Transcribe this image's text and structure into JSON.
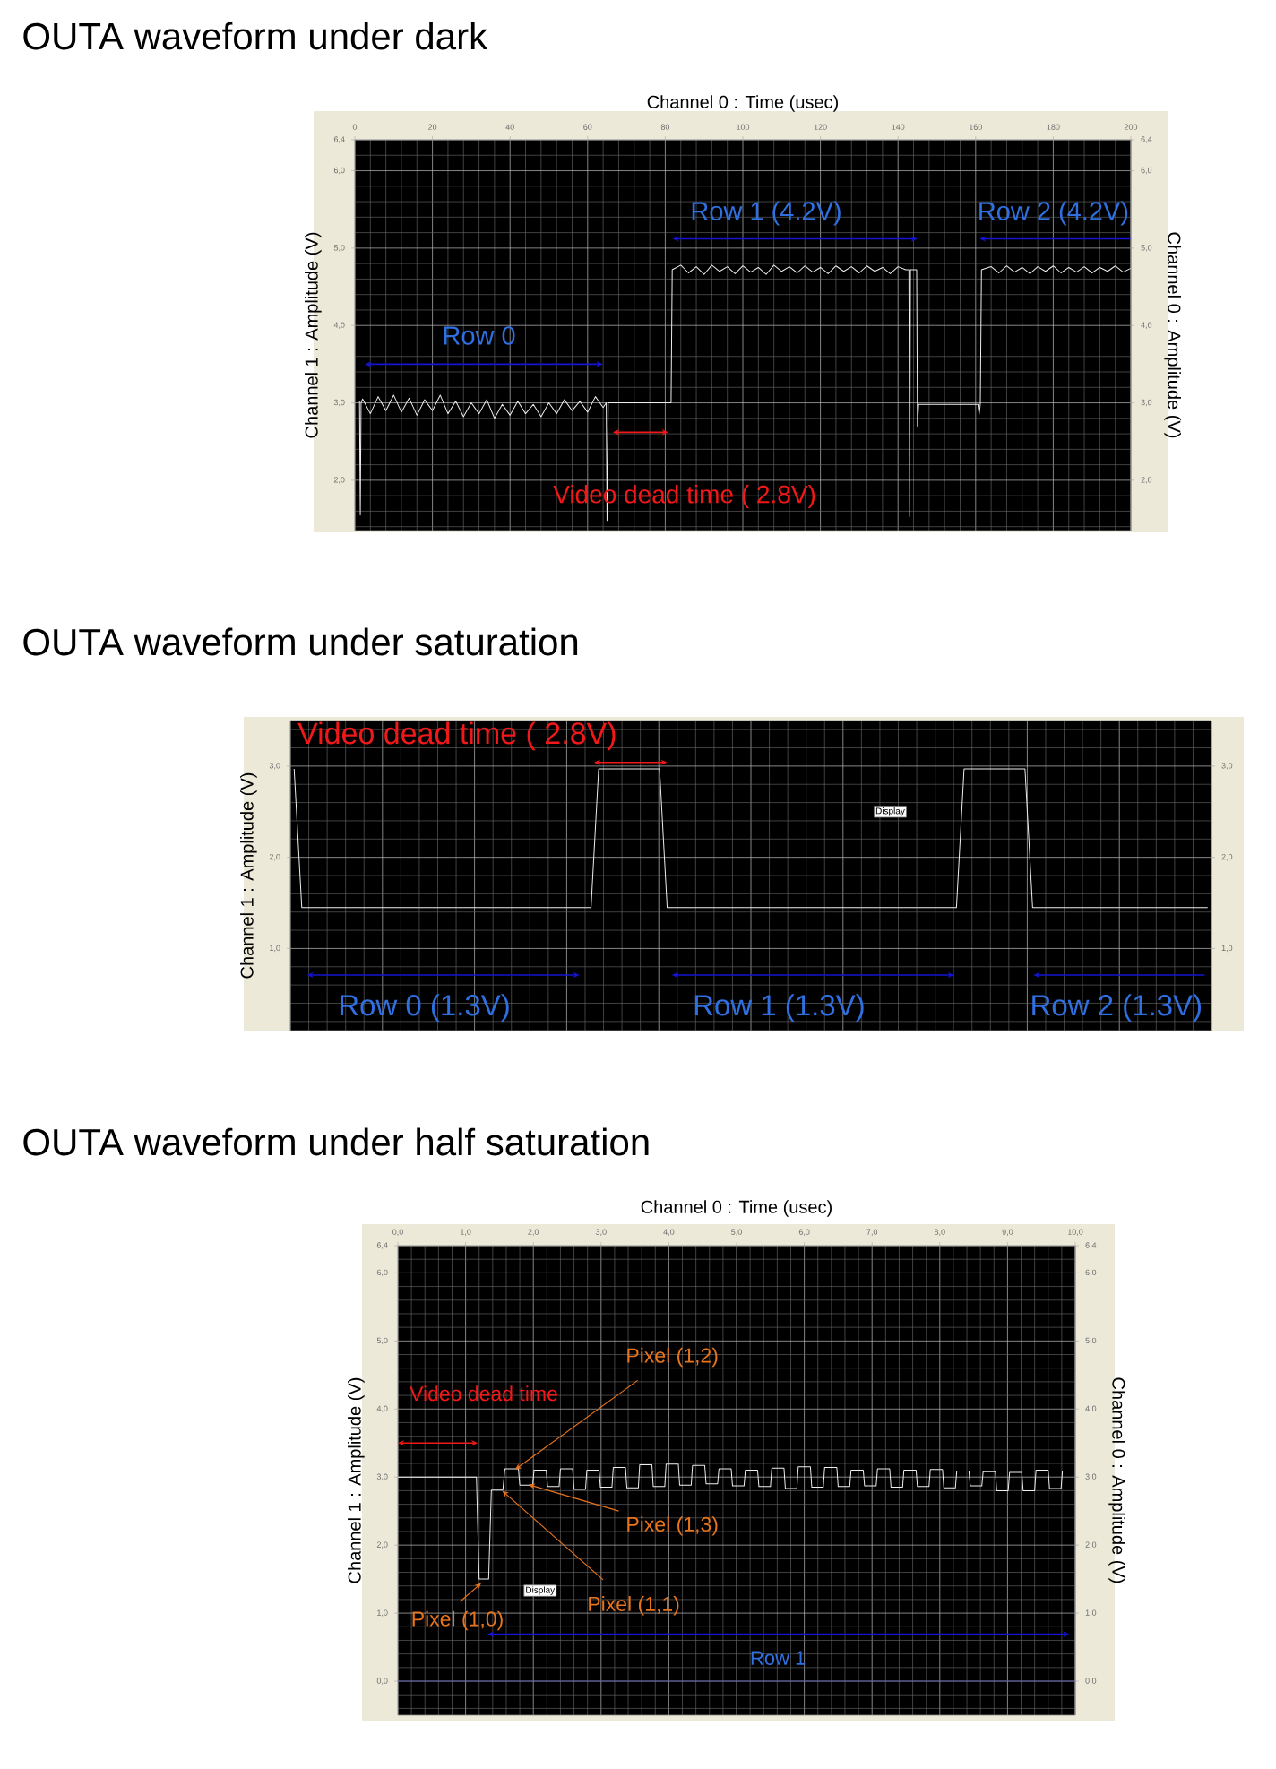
{
  "chart_data": [
    {
      "type": "line",
      "title": "OUTA waveform under dark",
      "xlabel": "Channel 0 : Time (usec)",
      "ylabel": "Channel 1 : Amplitude (V)",
      "y2label": "Channel 0 : Amplitude (V)",
      "xlim": [
        0,
        200
      ],
      "xticks": [
        0,
        20,
        40,
        60,
        80,
        100,
        120,
        140,
        160,
        180,
        200
      ],
      "ylim": [
        1.35,
        6.4
      ],
      "yticks": [
        {
          "value": 2,
          "label": "2,0"
        },
        {
          "value": 3,
          "label": "3,0"
        },
        {
          "value": 4,
          "label": "4,0"
        },
        {
          "value": 5,
          "label": "5,0"
        },
        {
          "value": 6,
          "label": "6,0"
        },
        {
          "value": 6.4,
          "label": "6,4"
        }
      ],
      "y2lim": [
        1.35,
        6.4
      ],
      "y2ticks": [
        {
          "value": 2,
          "label": "2,0"
        },
        {
          "value": 3,
          "label": "3,0"
        },
        {
          "value": 4,
          "label": "4,0"
        },
        {
          "value": 5,
          "label": "5,0"
        },
        {
          "value": 6,
          "label": "6,0"
        },
        {
          "value": 6.4,
          "label": "6,4"
        }
      ],
      "grid": true,
      "series": [
        {
          "color": "#eeeeee",
          "x": [
            1.2,
            1.4,
            1.6,
            2,
            4,
            6,
            8,
            10,
            12,
            14,
            16,
            18,
            20,
            22,
            24,
            26,
            28,
            30,
            32,
            34,
            36,
            38,
            40,
            42,
            44,
            46,
            48,
            50,
            52,
            54,
            56,
            58,
            60,
            62,
            64,
            64.8,
            65,
            65.3,
            81.5,
            81.8,
            84,
            86,
            88,
            90,
            92,
            94,
            96,
            98,
            100,
            102,
            104,
            106,
            108,
            110,
            112,
            114,
            116,
            118,
            120,
            122,
            124,
            126,
            128,
            130,
            132,
            134,
            136,
            138,
            140,
            142,
            142.8,
            143,
            143.2,
            144.8,
            145,
            145.3,
            160.6,
            160.9,
            161.2,
            161.5,
            164,
            166,
            168,
            170,
            172,
            174,
            176,
            178,
            180,
            182,
            184,
            186,
            188,
            190,
            192,
            194,
            196,
            198,
            200
          ],
          "values": [
            3.02,
            1.55,
            3.0,
            3.05,
            2.86,
            3.08,
            2.9,
            3.1,
            2.88,
            3.06,
            2.84,
            3.04,
            2.9,
            3.1,
            2.86,
            3.02,
            2.82,
            3.0,
            2.86,
            3.04,
            2.8,
            2.98,
            2.84,
            3.02,
            2.86,
            2.98,
            2.82,
            3.0,
            2.86,
            3.04,
            2.9,
            3.02,
            2.88,
            3.08,
            2.94,
            3.0,
            1.48,
            3.0,
            3.0,
            4.72,
            4.78,
            4.68,
            4.76,
            4.66,
            4.78,
            4.7,
            4.76,
            4.67,
            4.77,
            4.69,
            4.75,
            4.66,
            4.78,
            4.7,
            4.76,
            4.68,
            4.77,
            4.69,
            4.75,
            4.67,
            4.77,
            4.7,
            4.76,
            4.68,
            4.77,
            4.7,
            4.75,
            4.67,
            4.76,
            4.72,
            4.72,
            1.53,
            4.72,
            4.72,
            2.7,
            2.98,
            2.98,
            2.85,
            2.98,
            4.72,
            4.76,
            4.68,
            4.77,
            4.69,
            4.75,
            4.67,
            4.76,
            4.7,
            4.77,
            4.68,
            4.75,
            4.69,
            4.76,
            4.68,
            4.75,
            4.7,
            4.77,
            4.69,
            4.74
          ]
        }
      ],
      "annotations": [
        "Row 0",
        "Row 1 (4.2V)",
        "Row 2 (4.2V)",
        "Video dead time ( 2.8V)"
      ]
    },
    {
      "type": "line",
      "title": "OUTA waveform under saturation",
      "ylabel": "Channel 1 : Amplitude (V)",
      "categories": [
        null,
        null,
        null,
        null,
        null,
        null,
        null,
        null,
        null,
        null,
        null,
        null,
        null,
        null,
        null,
        null,
        null,
        null,
        null,
        null,
        null,
        null,
        null,
        null,
        null,
        null,
        null,
        null,
        null,
        null,
        null,
        null,
        null,
        null,
        null,
        null,
        null,
        null,
        null,
        null,
        null,
        null,
        null,
        null,
        null,
        null,
        null,
        null,
        null,
        null,
        null,
        null,
        null,
        null,
        null,
        null,
        null,
        null,
        null,
        null,
        null,
        null,
        null,
        null,
        null,
        null,
        null,
        null,
        null,
        null,
        null,
        null,
        null,
        null,
        null,
        null,
        null,
        null,
        null,
        null,
        null,
        null,
        null,
        null,
        null,
        null,
        null,
        null,
        null,
        null,
        null,
        null,
        null,
        null,
        null,
        null,
        null,
        null,
        null,
        null,
        null,
        null,
        null,
        null,
        null,
        null,
        null,
        null,
        null,
        null,
        null,
        null,
        null,
        null,
        null,
        null,
        null,
        null,
        null,
        null,
        null
      ],
      "ylim": [
        0.1,
        3.5
      ],
      "yticks": [
        {
          "value": 1,
          "label": "1,0"
        },
        {
          "value": 2,
          "label": "2,0"
        },
        {
          "value": 3,
          "label": "3,0"
        }
      ],
      "y2lim": [
        0.1,
        3.5
      ],
      "y2ticks": [
        {
          "value": 1,
          "label": "1,0"
        },
        {
          "value": 2,
          "label": "2,0"
        },
        {
          "value": 3,
          "label": "3,0"
        }
      ],
      "grid": true,
      "series": [
        {
          "color": "#eeeeee",
          "values": [
            2.97,
            1.45,
            1.45,
            1.45,
            1.45,
            1.45,
            1.45,
            1.45,
            1.45,
            1.45,
            1.45,
            1.45,
            1.45,
            1.45,
            1.45,
            1.45,
            1.45,
            1.45,
            1.45,
            1.45,
            1.45,
            1.45,
            1.45,
            1.45,
            1.45,
            1.45,
            1.45,
            1.45,
            1.45,
            1.45,
            1.45,
            1.45,
            1.45,
            1.45,
            1.45,
            1.45,
            1.45,
            1.45,
            1.45,
            1.45,
            2.97,
            2.97,
            2.97,
            2.97,
            2.97,
            2.97,
            2.97,
            2.97,
            2.97,
            1.45,
            1.45,
            1.45,
            1.45,
            1.45,
            1.45,
            1.45,
            1.45,
            1.45,
            1.45,
            1.45,
            1.45,
            1.45,
            1.45,
            1.45,
            1.45,
            1.45,
            1.45,
            1.45,
            1.45,
            1.45,
            1.45,
            1.45,
            1.45,
            1.45,
            1.45,
            1.45,
            1.45,
            1.45,
            1.45,
            1.45,
            1.45,
            1.45,
            1.45,
            1.45,
            1.45,
            1.45,
            1.45,
            1.45,
            2.97,
            2.97,
            2.97,
            2.97,
            2.97,
            2.97,
            2.97,
            2.97,
            2.97,
            1.45,
            1.45,
            1.45,
            1.45,
            1.45,
            1.45,
            1.45,
            1.45,
            1.45,
            1.45,
            1.45,
            1.45,
            1.45,
            1.45,
            1.45,
            1.45,
            1.45,
            1.45,
            1.45,
            1.45,
            1.45,
            1.45,
            1.45,
            1.45
          ]
        }
      ],
      "annotations": [
        "Video dead time ( 2.8V)",
        "Display",
        "Row 0 (1.3V)",
        "Row 1 (1.3V)",
        "Row 2 (1.3V)"
      ]
    },
    {
      "type": "line",
      "title": "OUTA waveform under half saturation",
      "xlabel": "Channel 0 : Time (usec)",
      "ylabel": "Channel 1 : Amplitude (V)",
      "y2label": "Channel 0 : Amplitude (V)",
      "xlim": [
        0,
        10
      ],
      "xticks": [
        {
          "value": 0,
          "label": "0,0"
        },
        {
          "value": 1,
          "label": "1,0"
        },
        {
          "value": 2,
          "label": "2,0"
        },
        {
          "value": 3,
          "label": "3,0"
        },
        {
          "value": 4,
          "label": "4,0"
        },
        {
          "value": 5,
          "label": "5,0"
        },
        {
          "value": 6,
          "label": "6,0"
        },
        {
          "value": 7,
          "label": "7,0"
        },
        {
          "value": 8,
          "label": "8,0"
        },
        {
          "value": 9,
          "label": "9,0"
        },
        {
          "value": 10,
          "label": "10,0"
        }
      ],
      "ylim": [
        -0.5,
        6.4
      ],
      "yticks": [
        {
          "value": 0,
          "label": "0,0"
        },
        {
          "value": 1,
          "label": "1,0"
        },
        {
          "value": 2,
          "label": "2,0"
        },
        {
          "value": 3,
          "label": "3,0"
        },
        {
          "value": 4,
          "label": "4,0"
        },
        {
          "value": 5,
          "label": "5,0"
        },
        {
          "value": 6,
          "label": "6,0"
        },
        {
          "value": 6.4,
          "label": "6,4"
        }
      ],
      "y2lim": [
        -0.5,
        6.4
      ],
      "y2ticks": [
        {
          "value": 0,
          "label": "0,0"
        },
        {
          "value": 1,
          "label": "1,0"
        },
        {
          "value": 2,
          "label": "2,0"
        },
        {
          "value": 3,
          "label": "3,0"
        },
        {
          "value": 4,
          "label": "4,0"
        },
        {
          "value": 5,
          "label": "5,0"
        },
        {
          "value": 6,
          "label": "6,0"
        },
        {
          "value": 6.4,
          "label": "6,4"
        }
      ],
      "grid": true,
      "series": [
        {
          "color": "#eeeeee",
          "x": [
            0,
            1.16,
            1.2,
            1.34,
            1.38,
            1.55,
            1.58,
            1.78,
            1.8,
            1.99,
            2.01,
            2.19,
            2.21,
            2.38,
            2.4,
            2.58,
            2.6,
            2.77,
            2.79,
            2.97,
            2.99,
            3.16,
            3.18,
            3.36,
            3.38,
            3.55,
            3.57,
            3.75,
            3.77,
            3.94,
            3.96,
            4.14,
            4.16,
            4.33,
            4.35,
            4.53,
            4.55,
            4.72,
            4.74,
            4.92,
            4.94,
            5.11,
            5.13,
            5.31,
            5.33,
            5.5,
            5.52,
            5.7,
            5.72,
            5.89,
            5.91,
            6.09,
            6.11,
            6.28,
            6.3,
            6.48,
            6.5,
            6.67,
            6.69,
            6.87,
            6.89,
            7.06,
            7.08,
            7.26,
            7.28,
            7.45,
            7.47,
            7.65,
            7.67,
            7.84,
            7.86,
            8.04,
            8.06,
            8.23,
            8.25,
            8.43,
            8.45,
            8.62,
            8.64,
            8.82,
            8.84,
            9.01,
            9.03,
            9.21,
            9.23,
            9.4,
            9.42,
            9.6,
            9.62,
            9.79,
            9.81,
            10
          ],
          "values": [
            3.0,
            3.0,
            1.5,
            1.5,
            2.81,
            2.81,
            3.12,
            3.12,
            2.88,
            2.88,
            3.1,
            3.1,
            2.86,
            2.86,
            3.12,
            3.12,
            2.82,
            2.82,
            3.1,
            3.1,
            2.85,
            2.85,
            3.14,
            3.14,
            2.84,
            2.84,
            3.18,
            3.18,
            2.86,
            2.86,
            3.19,
            3.19,
            2.88,
            2.88,
            3.17,
            3.17,
            2.9,
            2.9,
            3.12,
            3.12,
            2.87,
            2.87,
            3.1,
            3.1,
            2.86,
            2.86,
            3.13,
            3.13,
            2.83,
            2.83,
            3.15,
            3.15,
            2.85,
            2.85,
            3.14,
            3.14,
            2.86,
            2.86,
            3.1,
            3.1,
            2.87,
            2.87,
            3.12,
            3.12,
            2.85,
            2.85,
            3.1,
            3.1,
            2.86,
            2.86,
            3.11,
            3.11,
            2.84,
            2.84,
            3.09,
            3.09,
            2.87,
            2.87,
            3.08,
            3.08,
            2.8,
            2.8,
            3.07,
            3.07,
            2.8,
            2.8,
            3.1,
            3.1,
            2.83,
            2.83,
            3.09,
            3.09
          ]
        },
        {
          "color": "#4d4d9e",
          "x": [
            0,
            10
          ],
          "values": [
            0,
            0
          ]
        }
      ],
      "annotations": [
        "Video dead time",
        {
          "text": "Pixel (1,2)",
          "x": 1.73,
          "y": 3.11
        },
        {
          "text": "Pixel (1,3)",
          "x": 1.93,
          "y": 2.89
        },
        {
          "text": "Pixel (1,1)",
          "x": 1.54,
          "y": 2.8
        },
        {
          "text": "Pixel (1,0)",
          "x": 1.23,
          "y": 1.44
        },
        "Display",
        "Row 1"
      ]
    }
  ]
}
